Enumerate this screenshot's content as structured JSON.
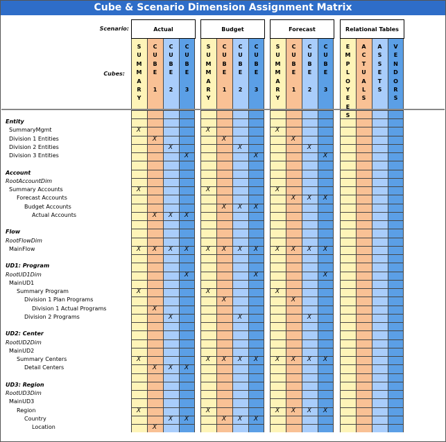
{
  "title": "Cube & Scenario Dimension Assignment Matrix",
  "scenario_label": "Scenario:",
  "cubes_label": "Cubes:",
  "colors": {
    "summary": "#fef4b8",
    "cube1": "#f9c195",
    "cube2": "#a9cdfb",
    "cube3": "#5b9fe6",
    "title_bg": "#2e6dc8"
  },
  "scenarios": [
    {
      "name": "Actual",
      "columns": [
        [
          "S",
          "U",
          "M",
          "M",
          "A",
          "R",
          "Y"
        ],
        [
          "C",
          "U",
          "B",
          "E",
          "",
          "1"
        ],
        [
          "C",
          "U",
          "B",
          "E",
          "",
          "2"
        ],
        [
          "C",
          "U",
          "B",
          "E",
          "",
          "3"
        ]
      ]
    },
    {
      "name": "Budget",
      "columns": [
        [
          "S",
          "U",
          "M",
          "M",
          "A",
          "R",
          "Y"
        ],
        [
          "C",
          "U",
          "B",
          "E",
          "",
          "1"
        ],
        [
          "C",
          "U",
          "B",
          "E",
          "",
          "2"
        ],
        [
          "C",
          "U",
          "B",
          "E",
          "",
          "3"
        ]
      ]
    },
    {
      "name": "Forecast",
      "columns": [
        [
          "S",
          "U",
          "M",
          "M",
          "A",
          "R",
          "Y"
        ],
        [
          "C",
          "U",
          "B",
          "E",
          "",
          "1"
        ],
        [
          "C",
          "U",
          "B",
          "E",
          "",
          "2"
        ],
        [
          "C",
          "U",
          "B",
          "E",
          "",
          "3"
        ]
      ]
    },
    {
      "name": "Relational Tables",
      "columns": [
        [
          "E",
          "M",
          "P",
          "L",
          "O",
          "Y",
          "E",
          "E",
          "S"
        ],
        [
          "A",
          "C",
          "T",
          "U",
          "A",
          "L",
          "S"
        ],
        [
          "A",
          "S",
          "S",
          "E",
          "T",
          "S"
        ],
        [
          "V",
          "E",
          "N",
          "D",
          "O",
          "R",
          "S"
        ]
      ]
    }
  ],
  "rows": [
    {
      "label": "Entity",
      "style": "b",
      "indent": 0,
      "marks": []
    },
    {
      "label": "SummaryMgmt",
      "style": "",
      "indent": 1,
      "marks": [
        0,
        4,
        8
      ]
    },
    {
      "label": "Division 1 Entities",
      "style": "",
      "indent": 1,
      "marks": [
        1,
        5,
        9
      ]
    },
    {
      "label": "Division 2 Entities",
      "style": "",
      "indent": 1,
      "marks": [
        2,
        6,
        10
      ]
    },
    {
      "label": "Division 3 Entities",
      "style": "",
      "indent": 1,
      "marks": [
        3,
        7,
        11
      ]
    },
    {
      "label": "",
      "style": "",
      "indent": 0,
      "marks": []
    },
    {
      "label": "Account",
      "style": "b",
      "indent": 0,
      "marks": []
    },
    {
      "label": "RootAccountDim",
      "style": "i",
      "indent": 0,
      "marks": []
    },
    {
      "label": "Summary Accounts",
      "style": "",
      "indent": 1,
      "marks": [
        0,
        4,
        8
      ]
    },
    {
      "label": "Forecast Accounts",
      "style": "",
      "indent": 2,
      "marks": [
        9,
        10,
        11
      ]
    },
    {
      "label": "Budget Accounts",
      "style": "",
      "indent": 3,
      "marks": [
        5,
        6,
        7
      ]
    },
    {
      "label": "Actual Accounts",
      "style": "",
      "indent": 4,
      "marks": [
        1,
        2,
        3
      ]
    },
    {
      "label": "",
      "style": "",
      "indent": 0,
      "marks": []
    },
    {
      "label": "Flow",
      "style": "b",
      "indent": 0,
      "marks": []
    },
    {
      "label": "RootFlowDim",
      "style": "i",
      "indent": 0,
      "marks": []
    },
    {
      "label": "MainFlow",
      "style": "",
      "indent": 1,
      "marks": [
        0,
        1,
        2,
        3,
        4,
        5,
        6,
        7,
        8,
        9,
        10,
        11
      ]
    },
    {
      "label": "",
      "style": "",
      "indent": 0,
      "marks": []
    },
    {
      "label": "UD1: Program",
      "style": "b",
      "indent": 0,
      "marks": []
    },
    {
      "label": "RootUD1Dim",
      "style": "i",
      "indent": 0,
      "marks": [
        3,
        7,
        11
      ]
    },
    {
      "label": "MainUD1",
      "style": "",
      "indent": 1,
      "marks": []
    },
    {
      "label": "Summary Program",
      "style": "",
      "indent": 2,
      "marks": [
        0,
        4,
        8
      ]
    },
    {
      "label": "Division 1 Plan Programs",
      "style": "",
      "indent": 3,
      "marks": [
        5,
        9
      ]
    },
    {
      "label": "Division 1 Actual Programs",
      "style": "",
      "indent": 4,
      "marks": [
        1
      ]
    },
    {
      "label": "Division 2 Programs",
      "style": "",
      "indent": 3,
      "marks": [
        2,
        6,
        10
      ]
    },
    {
      "label": "",
      "style": "",
      "indent": 0,
      "marks": []
    },
    {
      "label": "UD2: Center",
      "style": "b",
      "indent": 0,
      "marks": []
    },
    {
      "label": "RootUD2Dim",
      "style": "i",
      "indent": 0,
      "marks": []
    },
    {
      "label": "MainUD2",
      "style": "",
      "indent": 1,
      "marks": []
    },
    {
      "label": "Summary Centers",
      "style": "",
      "indent": 2,
      "marks": [
        0,
        4,
        5,
        6,
        7,
        8,
        9,
        10,
        11
      ]
    },
    {
      "label": "Detail Centers",
      "style": "",
      "indent": 3,
      "marks": [
        1,
        2,
        3
      ]
    },
    {
      "label": "",
      "style": "",
      "indent": 0,
      "marks": []
    },
    {
      "label": "UD3: Region",
      "style": "b",
      "indent": 0,
      "marks": []
    },
    {
      "label": "RootUD3Dim",
      "style": "i",
      "indent": 0,
      "marks": []
    },
    {
      "label": "MainUD3",
      "style": "",
      "indent": 1,
      "marks": []
    },
    {
      "label": "Region",
      "style": "",
      "indent": 2,
      "marks": [
        0,
        4,
        8,
        9,
        10,
        11
      ]
    },
    {
      "label": "Country",
      "style": "",
      "indent": 3,
      "marks": [
        2,
        3,
        5,
        6,
        7
      ]
    },
    {
      "label": "Location",
      "style": "",
      "indent": 4,
      "marks": [
        1
      ]
    }
  ],
  "mark_symbol": "X"
}
